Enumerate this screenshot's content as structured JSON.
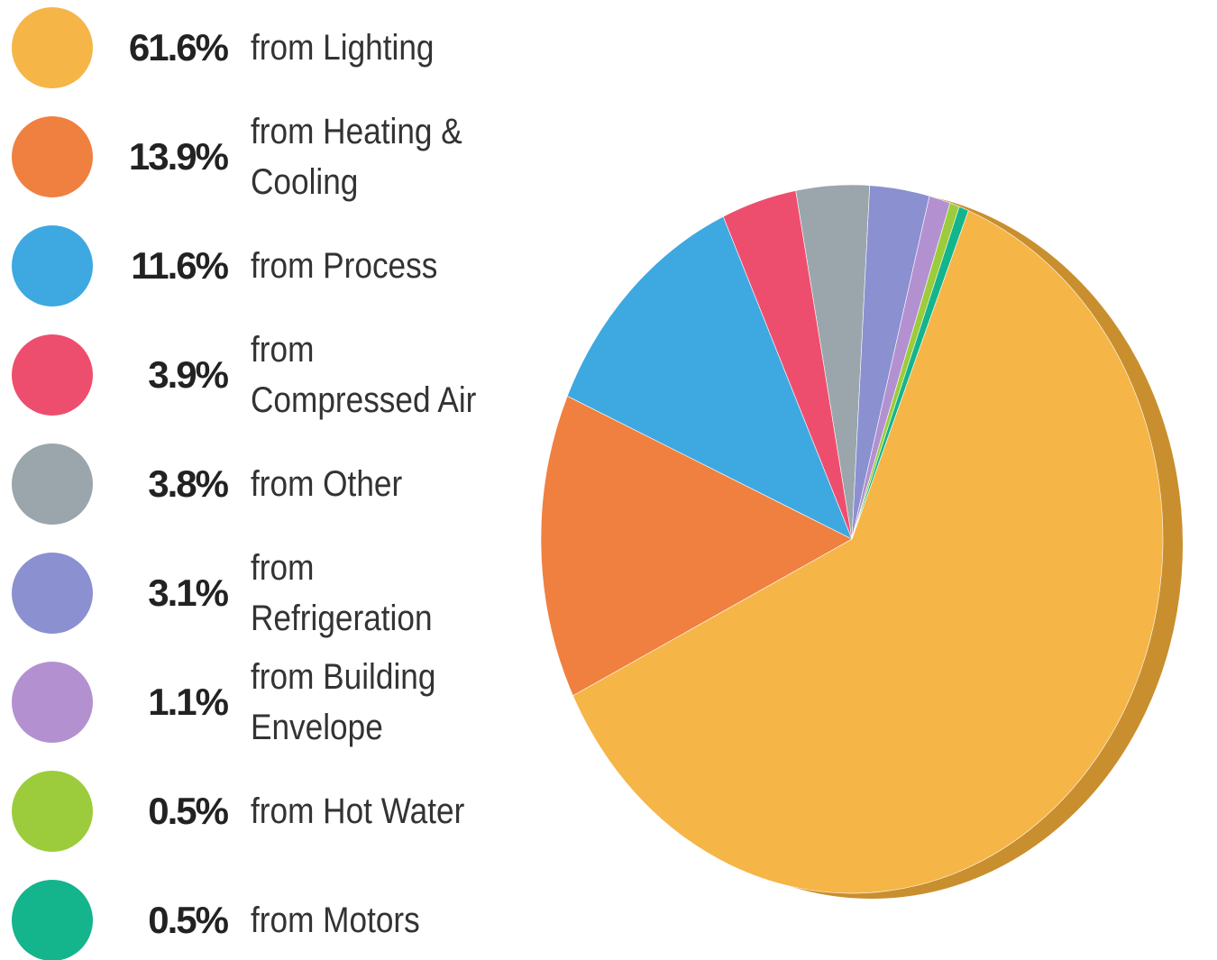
{
  "chart_data": {
    "type": "pie",
    "categories": [
      "from Lighting",
      "from Heating & Cooling",
      "from Process",
      "from Compressed Air",
      "from Other",
      "from Refrigeration",
      "from Building Envelope",
      "from Hot Water",
      "from Motors"
    ],
    "values": [
      61.6,
      13.9,
      11.6,
      3.9,
      3.8,
      3.1,
      1.1,
      0.5,
      0.5
    ],
    "value_labels": [
      "61.6%",
      "13.9%",
      "11.6%",
      "3.9%",
      "3.8%",
      "3.1%",
      "1.1%",
      "0.5%",
      "0.5%"
    ],
    "colors": [
      "#f5b547",
      "#f08040",
      "#3ea8e0",
      "#ee4e6e",
      "#9aa6ab",
      "#8a90d0",
      "#b391d0",
      "#9ccc3c",
      "#14b48c"
    ]
  }
}
